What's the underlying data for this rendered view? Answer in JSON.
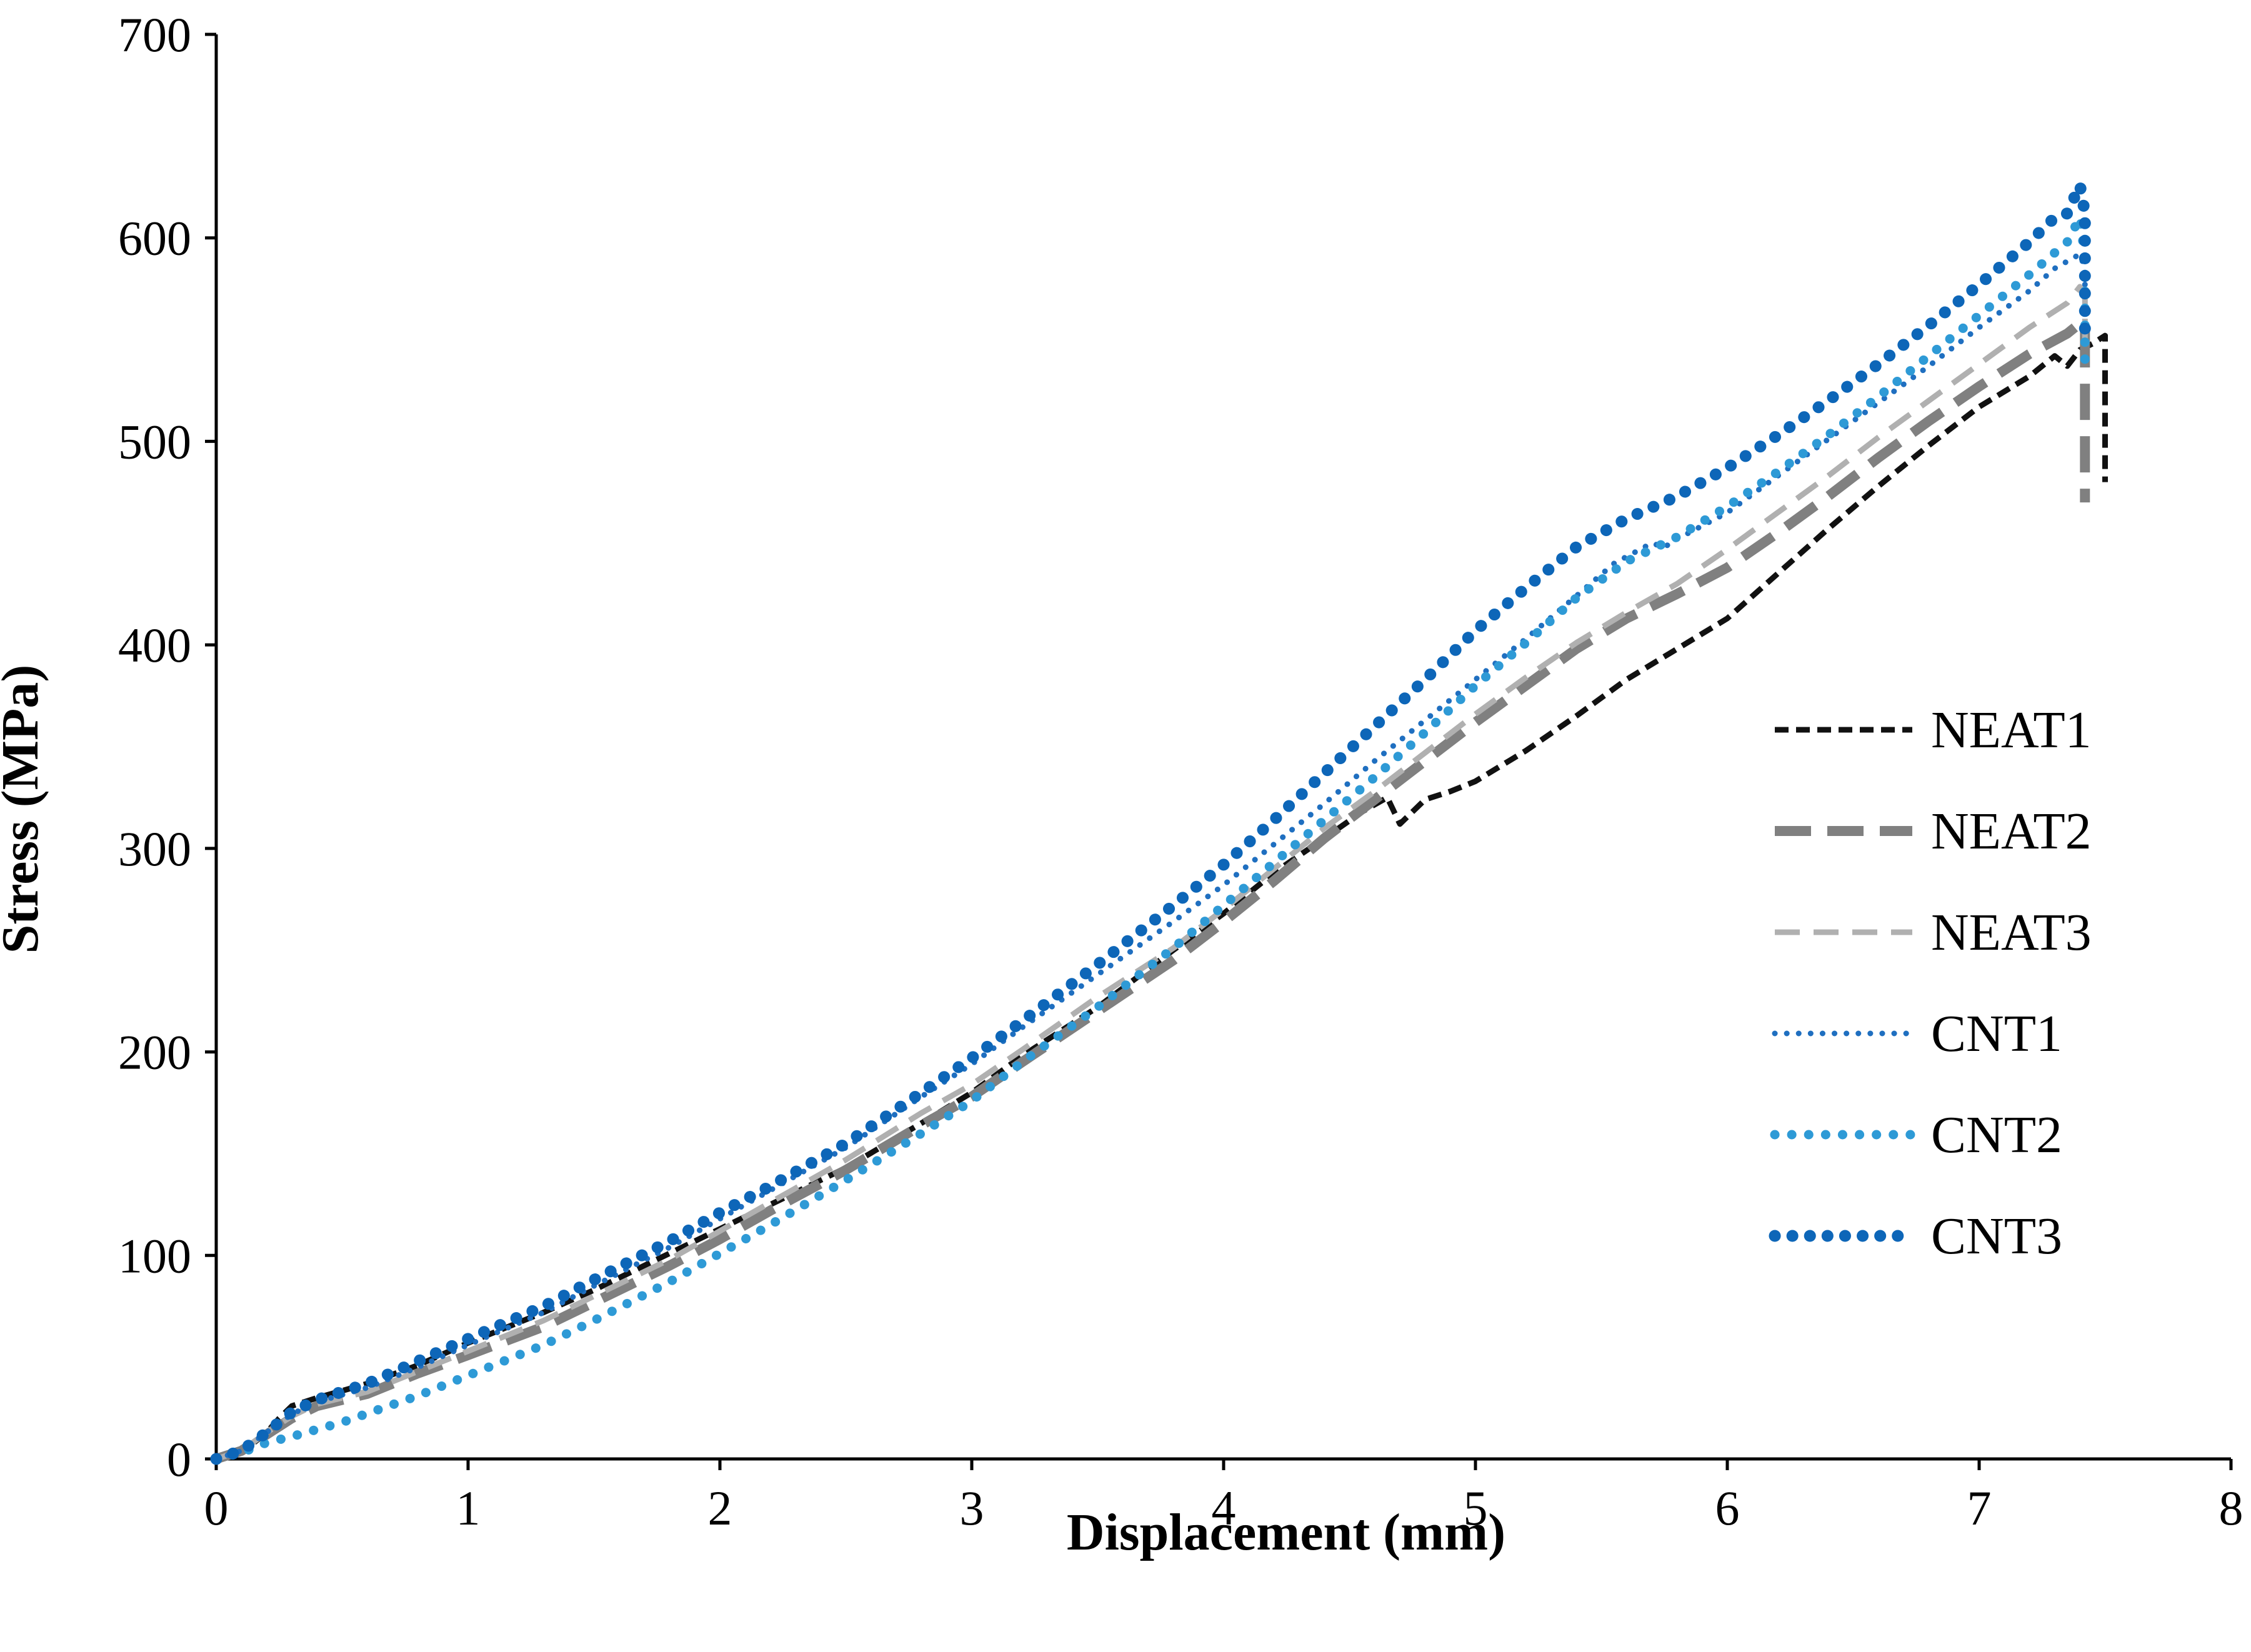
{
  "chart_data": {
    "type": "line",
    "title": "",
    "xlabel": "Displacement (mm)",
    "ylabel": "Stress (MPa)",
    "xlim": [
      0,
      8
    ],
    "ylim": [
      0,
      700
    ],
    "x_ticks": [
      0,
      1,
      2,
      3,
      4,
      5,
      6,
      7,
      8
    ],
    "y_ticks": [
      0,
      100,
      200,
      300,
      400,
      500,
      600,
      700
    ],
    "grid": false,
    "legend_position": "right",
    "series": [
      {
        "name": "NEAT1",
        "color": "#111111",
        "style": "short-dash",
        "points": [
          [
            0,
            0
          ],
          [
            0.1,
            3
          ],
          [
            0.2,
            13
          ],
          [
            0.25,
            20
          ],
          [
            0.3,
            26
          ],
          [
            0.4,
            30
          ],
          [
            0.6,
            37
          ],
          [
            0.8,
            46
          ],
          [
            1,
            57
          ],
          [
            1.3,
            72
          ],
          [
            1.5,
            83
          ],
          [
            1.8,
            101
          ],
          [
            2,
            113
          ],
          [
            2.2,
            125
          ],
          [
            2.5,
            143
          ],
          [
            2.8,
            165
          ],
          [
            3,
            180
          ],
          [
            3.2,
            198
          ],
          [
            3.5,
            222
          ],
          [
            3.8,
            250
          ],
          [
            4,
            268
          ],
          [
            4.2,
            288
          ],
          [
            4.4,
            305
          ],
          [
            4.55,
            318
          ],
          [
            4.65,
            325
          ],
          [
            4.7,
            312
          ],
          [
            4.75,
            318
          ],
          [
            4.8,
            324
          ],
          [
            4.9,
            328
          ],
          [
            5,
            333
          ],
          [
            5.2,
            348
          ],
          [
            5.4,
            365
          ],
          [
            5.6,
            383
          ],
          [
            5.8,
            398
          ],
          [
            6,
            413
          ],
          [
            6.2,
            435
          ],
          [
            6.4,
            457
          ],
          [
            6.6,
            478
          ],
          [
            6.8,
            498
          ],
          [
            7,
            517
          ],
          [
            7.2,
            532
          ],
          [
            7.3,
            542
          ],
          [
            7.35,
            537
          ],
          [
            7.4,
            545
          ],
          [
            7.45,
            548
          ],
          [
            7.5,
            552
          ],
          [
            7.5,
            480
          ]
        ]
      },
      {
        "name": "NEAT2",
        "color": "#808080",
        "style": "long-dash",
        "points": [
          [
            0,
            0
          ],
          [
            0.1,
            4
          ],
          [
            0.2,
            12
          ],
          [
            0.3,
            20
          ],
          [
            0.4,
            26
          ],
          [
            0.6,
            32
          ],
          [
            0.8,
            42
          ],
          [
            1,
            51
          ],
          [
            1.3,
            65
          ],
          [
            1.5,
            77
          ],
          [
            1.8,
            95
          ],
          [
            2,
            108
          ],
          [
            2.2,
            122
          ],
          [
            2.5,
            142
          ],
          [
            2.8,
            164
          ],
          [
            3,
            178
          ],
          [
            3.2,
            195
          ],
          [
            3.5,
            220
          ],
          [
            3.8,
            245
          ],
          [
            4,
            264
          ],
          [
            4.2,
            284
          ],
          [
            4.4,
            305
          ],
          [
            4.6,
            324
          ],
          [
            4.8,
            343
          ],
          [
            5,
            362
          ],
          [
            5.2,
            380
          ],
          [
            5.4,
            398
          ],
          [
            5.6,
            413
          ],
          [
            5.8,
            425
          ],
          [
            6,
            438
          ],
          [
            6.2,
            455
          ],
          [
            6.4,
            473
          ],
          [
            6.6,
            492
          ],
          [
            6.8,
            510
          ],
          [
            7,
            527
          ],
          [
            7.2,
            543
          ],
          [
            7.35,
            553
          ],
          [
            7.4,
            558
          ],
          [
            7.42,
            555
          ],
          [
            7.42,
            470
          ]
        ]
      },
      {
        "name": "NEAT3",
        "color": "#b0b0b0",
        "style": "dash",
        "points": [
          [
            0,
            0
          ],
          [
            0.1,
            4
          ],
          [
            0.2,
            13
          ],
          [
            0.3,
            21
          ],
          [
            0.4,
            27
          ],
          [
            0.6,
            33
          ],
          [
            0.8,
            43
          ],
          [
            1,
            53
          ],
          [
            1.3,
            68
          ],
          [
            1.5,
            80
          ],
          [
            1.8,
            98
          ],
          [
            2,
            112
          ],
          [
            2.2,
            126
          ],
          [
            2.5,
            147
          ],
          [
            2.8,
            170
          ],
          [
            3,
            184
          ],
          [
            3.2,
            201
          ],
          [
            3.5,
            227
          ],
          [
            3.8,
            251
          ],
          [
            4,
            270
          ],
          [
            4.2,
            290
          ],
          [
            4.4,
            310
          ],
          [
            4.6,
            328
          ],
          [
            4.8,
            347
          ],
          [
            5,
            366
          ],
          [
            5.2,
            384
          ],
          [
            5.4,
            401
          ],
          [
            5.6,
            416
          ],
          [
            5.8,
            430
          ],
          [
            6,
            447
          ],
          [
            6.2,
            465
          ],
          [
            6.4,
            483
          ],
          [
            6.6,
            502
          ],
          [
            6.8,
            520
          ],
          [
            7,
            538
          ],
          [
            7.2,
            556
          ],
          [
            7.35,
            568
          ],
          [
            7.4,
            576
          ],
          [
            7.42,
            570
          ],
          [
            7.42,
            540
          ]
        ]
      },
      {
        "name": "CNT1",
        "color": "#1f6fc0",
        "style": "small-dot",
        "points": [
          [
            0,
            0
          ],
          [
            0.1,
            4
          ],
          [
            0.2,
            13
          ],
          [
            0.3,
            22
          ],
          [
            0.4,
            28
          ],
          [
            0.6,
            35
          ],
          [
            0.8,
            45
          ],
          [
            1,
            56
          ],
          [
            1.3,
            72
          ],
          [
            1.5,
            85
          ],
          [
            1.8,
            104
          ],
          [
            2,
            118
          ],
          [
            2.2,
            132
          ],
          [
            2.5,
            153
          ],
          [
            2.8,
            178
          ],
          [
            3,
            194
          ],
          [
            3.2,
            212
          ],
          [
            3.5,
            238
          ],
          [
            3.8,
            264
          ],
          [
            4,
            282
          ],
          [
            4.2,
            302
          ],
          [
            4.4,
            322
          ],
          [
            4.6,
            343
          ],
          [
            4.8,
            363
          ],
          [
            5,
            383
          ],
          [
            5.2,
            403
          ],
          [
            5.4,
            424
          ],
          [
            5.55,
            440
          ],
          [
            5.7,
            450
          ],
          [
            5.75,
            448
          ],
          [
            5.8,
            452
          ],
          [
            6,
            465
          ],
          [
            6.2,
            483
          ],
          [
            6.4,
            501
          ],
          [
            6.6,
            519
          ],
          [
            6.8,
            537
          ],
          [
            7,
            556
          ],
          [
            7.2,
            574
          ],
          [
            7.3,
            585
          ],
          [
            7.4,
            592
          ],
          [
            7.42,
            585
          ],
          [
            7.42,
            560
          ]
        ]
      },
      {
        "name": "CNT2",
        "color": "#2e9ad6",
        "style": "dot",
        "points": [
          [
            0,
            0
          ],
          [
            0.1,
            3
          ],
          [
            0.2,
            8
          ],
          [
            0.3,
            11
          ],
          [
            0.5,
            18
          ],
          [
            0.8,
            31
          ],
          [
            1,
            41
          ],
          [
            1.3,
            56
          ],
          [
            1.5,
            68
          ],
          [
            1.8,
            87
          ],
          [
            2,
            101
          ],
          [
            2.2,
            115
          ],
          [
            2.5,
            137
          ],
          [
            2.8,
            160
          ],
          [
            3,
            176
          ],
          [
            3.2,
            195
          ],
          [
            3.5,
            222
          ],
          [
            3.8,
            251
          ],
          [
            4,
            272
          ],
          [
            4.2,
            293
          ],
          [
            4.4,
            314
          ],
          [
            4.6,
            335
          ],
          [
            4.8,
            357
          ],
          [
            5,
            380
          ],
          [
            5.2,
            401
          ],
          [
            5.4,
            423
          ],
          [
            5.6,
            441
          ],
          [
            5.8,
            453
          ],
          [
            6,
            468
          ],
          [
            6.2,
            485
          ],
          [
            6.4,
            503
          ],
          [
            6.6,
            522
          ],
          [
            6.8,
            542
          ],
          [
            7,
            562
          ],
          [
            7.2,
            582
          ],
          [
            7.35,
            598
          ],
          [
            7.4,
            610
          ],
          [
            7.42,
            590
          ],
          [
            7.42,
            540
          ]
        ]
      },
      {
        "name": "CNT3",
        "color": "#0d66b8",
        "style": "large-dot",
        "points": [
          [
            0,
            0
          ],
          [
            0.1,
            4
          ],
          [
            0.2,
            13
          ],
          [
            0.3,
            23
          ],
          [
            0.4,
            29
          ],
          [
            0.6,
            37
          ],
          [
            0.8,
            48
          ],
          [
            1,
            59
          ],
          [
            1.3,
            75
          ],
          [
            1.5,
            88
          ],
          [
            1.8,
            107
          ],
          [
            2,
            121
          ],
          [
            2.2,
            134
          ],
          [
            2.5,
            155
          ],
          [
            2.8,
            180
          ],
          [
            3,
            197
          ],
          [
            3.2,
            215
          ],
          [
            3.5,
            243
          ],
          [
            3.8,
            272
          ],
          [
            4,
            292
          ],
          [
            4.2,
            314
          ],
          [
            4.4,
            337
          ],
          [
            4.6,
            360
          ],
          [
            4.8,
            383
          ],
          [
            5,
            407
          ],
          [
            5.2,
            428
          ],
          [
            5.4,
            448
          ],
          [
            5.6,
            462
          ],
          [
            5.8,
            473
          ],
          [
            6,
            487
          ],
          [
            6.2,
            503
          ],
          [
            6.4,
            520
          ],
          [
            6.6,
            538
          ],
          [
            6.8,
            557
          ],
          [
            7,
            577
          ],
          [
            7.2,
            598
          ],
          [
            7.3,
            610
          ],
          [
            7.35,
            612
          ],
          [
            7.4,
            626
          ],
          [
            7.42,
            612
          ],
          [
            7.42,
            548
          ]
        ]
      }
    ]
  }
}
